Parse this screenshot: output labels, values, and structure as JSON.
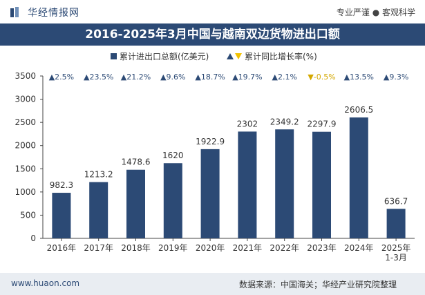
{
  "header": {
    "brand": "华经情报网",
    "tagline": "专业严谨 ● 客观科学"
  },
  "chart_data": {
    "type": "bar",
    "title": "2016-2025年3月中国与越南双边货物进出口额",
    "categories": [
      "2016年",
      "2017年",
      "2018年",
      "2019年",
      "2020年",
      "2021年",
      "2022年",
      "2023年",
      "2024年",
      "2025年\n1-3月"
    ],
    "series": [
      {
        "name": "累计进出口总额(亿美元)",
        "values": [
          982.3,
          1213.2,
          1478.6,
          1620,
          1922.9,
          2302,
          2349.2,
          2297.9,
          2606.5,
          636.7
        ]
      },
      {
        "name": "累计同比增长率(%)",
        "values": [
          2.5,
          23.5,
          21.2,
          9.6,
          18.7,
          19.7,
          2.1,
          -0.5,
          13.5,
          9.3
        ]
      }
    ],
    "value_labels": [
      "982.3",
      "1213.2",
      "1478.6",
      "1620",
      "1922.9",
      "2302",
      "2349.2",
      "2297.9",
      "2606.5",
      "636.7"
    ],
    "growth_labels": [
      "▲2.5%",
      "▲23.5%",
      "▲21.2%",
      "▲9.6%",
      "▲18.7%",
      "▲19.7%",
      "▲2.1%",
      "▼-0.5%",
      "▲13.5%",
      "▲9.3%"
    ],
    "ylim": [
      0,
      3500
    ],
    "yticks": [
      "0",
      "500",
      "1000",
      "1500",
      "2000",
      "2500",
      "3000",
      "3500"
    ],
    "grid": false,
    "legend_position": "top-center",
    "colors": {
      "bar": "#2c4a75",
      "up": "#2c4a75",
      "down": "#f2c200"
    }
  },
  "footer": {
    "site": "www.huaon.com",
    "source": "数据来源：中国海关；华经产业研究院整理"
  }
}
